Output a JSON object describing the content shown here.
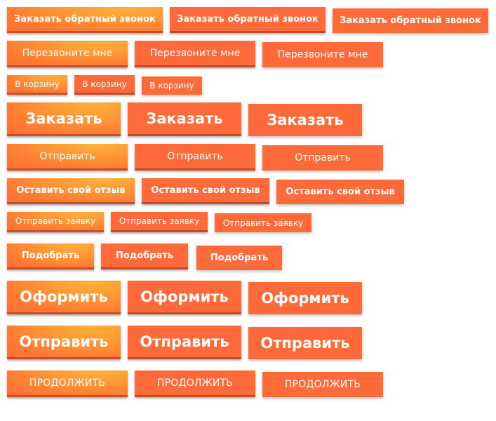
{
  "buttons": {
    "zakazat_obratny_zvonok": "Заказать обратный звонок",
    "perezvonite_mne": "Перезвоните мне",
    "v_korzinu": "В корзину",
    "zakazat": "Заказать",
    "otpravit": "Отправить",
    "ostavit_otzyv": "Оставить свой отзыв",
    "otpravit_zayavku": "Отправить заявку",
    "podobrat": "Подобрать",
    "oformit": "Оформить",
    "otpravit_big": "Отправить",
    "prodolzhit": "ПРОДОЛЖИТЬ"
  },
  "colors": {
    "accent": "#ff6a3a",
    "gradient_highlight": "#ffb13a",
    "shadow_line": "#c94f2a"
  }
}
